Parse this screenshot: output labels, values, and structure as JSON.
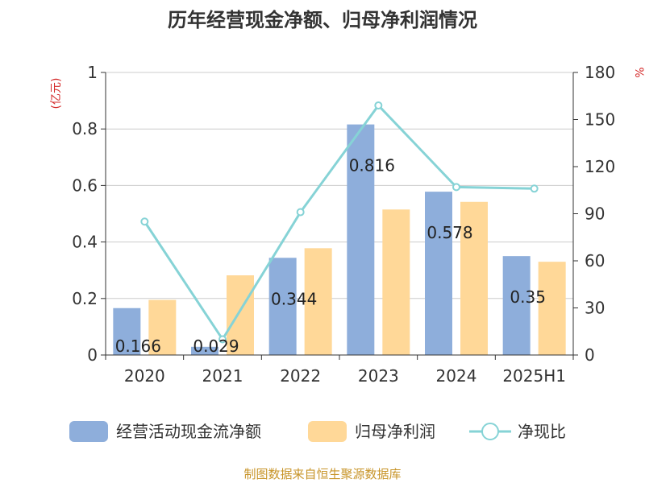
{
  "chart_data": {
    "type": "bar",
    "title": "历年经营现金净额、归母净利润情况",
    "categories": [
      "2020",
      "2021",
      "2022",
      "2023",
      "2024",
      "2025H1"
    ],
    "left_axis": {
      "unit": "(亿元)",
      "ylim": [
        0,
        1
      ],
      "ticks": [
        "0",
        "0.2",
        "0.4",
        "0.6",
        "0.8",
        "1"
      ]
    },
    "right_axis": {
      "unit": "%",
      "ylim": [
        0,
        180
      ],
      "ticks": [
        "0",
        "30",
        "60",
        "90",
        "120",
        "150",
        "180"
      ]
    },
    "series": [
      {
        "name": "经营活动现金流净额",
        "type": "bar",
        "axis": "left",
        "color": "#8eaedb",
        "values": [
          0.166,
          0.029,
          0.344,
          0.816,
          0.578,
          0.35
        ],
        "labels": [
          "0.166",
          "0.029",
          "0.344",
          "0.816",
          "0.578",
          "0.35"
        ]
      },
      {
        "name": "归母净利润",
        "type": "bar",
        "axis": "left",
        "color": "#ffd898",
        "values": [
          0.195,
          0.282,
          0.378,
          0.515,
          0.542,
          0.33
        ]
      },
      {
        "name": "净现比",
        "type": "line",
        "axis": "right",
        "color": "#86d3d6",
        "values": [
          85,
          10,
          91,
          159,
          107,
          106
        ]
      }
    ],
    "grid": true,
    "legend_position": "bottom"
  },
  "source_text": "制图数据来自恒生聚源数据库"
}
